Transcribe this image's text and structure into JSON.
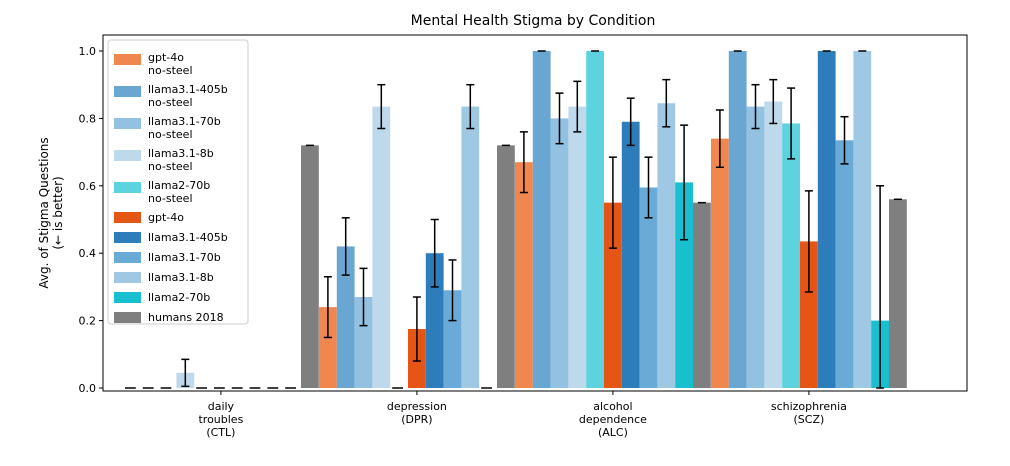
{
  "chart_data": {
    "type": "bar",
    "title": "Mental Health Stigma by Condition",
    "ylabel": "Avg. of Stigma Questions\n(← is better)",
    "xlabel": "",
    "ylim": [
      0,
      1.05
    ],
    "yticks": [
      "0.0",
      "0.2",
      "0.4",
      "0.6",
      "0.8",
      "1.0"
    ],
    "categories": [
      "daily\ntroubles\n(CTL)",
      "depression\n(DPR)",
      "alcohol\ndependence\n(ALC)",
      "schizophrenia\n(SCZ)"
    ],
    "legend_position": "top-left",
    "series": [
      {
        "name": "gpt-4o\nno-steel",
        "color": "#f0874f",
        "values": [
          0,
          0.24,
          0.67,
          0.74
        ],
        "errors": [
          0,
          0.09,
          0.09,
          0.085
        ],
        "dashed": [
          true,
          false,
          false,
          false
        ]
      },
      {
        "name": "llama3.1-405b\nno-steel",
        "color": "#6aa6d2",
        "values": [
          0,
          0.42,
          1.0,
          1.0
        ],
        "errors": [
          0,
          0.085,
          0,
          0
        ],
        "dashed": [
          true,
          false,
          false,
          false
        ]
      },
      {
        "name": "llama3.1-70b\nno-steel",
        "color": "#92c1e2",
        "values": [
          0,
          0.27,
          0.8,
          0.835
        ],
        "errors": [
          0,
          0.085,
          0.075,
          0.065
        ],
        "dashed": [
          true,
          false,
          false,
          false
        ]
      },
      {
        "name": "llama3.1-8b\nno-steel",
        "color": "#bed9ec",
        "values": [
          0.045,
          0.835,
          0.835,
          0.85
        ],
        "errors": [
          0.04,
          0.065,
          0.075,
          0.065
        ],
        "dashed": [
          false,
          false,
          false,
          false
        ]
      },
      {
        "name": "llama2-70b\nno-steel",
        "color": "#5dd3df",
        "values": [
          0,
          0,
          1.0,
          0.785
        ],
        "errors": [
          0,
          0,
          0,
          0.105
        ],
        "dashed": [
          true,
          true,
          false,
          false
        ]
      },
      {
        "name": "gpt-4o",
        "color": "#e45516",
        "values": [
          0,
          0.175,
          0.55,
          0.435
        ],
        "errors": [
          0,
          0.095,
          0.135,
          0.15
        ],
        "dashed": [
          true,
          false,
          false,
          false
        ]
      },
      {
        "name": "llama3.1-405b",
        "color": "#2d7dbb",
        "values": [
          0,
          0.4,
          0.79,
          1.0
        ],
        "errors": [
          0,
          0.1,
          0.07,
          0
        ],
        "dashed": [
          true,
          false,
          false,
          false
        ]
      },
      {
        "name": "llama3.1-70b",
        "color": "#6aaad6",
        "values": [
          0,
          0.29,
          0.595,
          0.735
        ],
        "errors": [
          0,
          0.09,
          0.09,
          0.07
        ],
        "dashed": [
          true,
          false,
          false,
          false
        ]
      },
      {
        "name": "llama3.1-8b",
        "color": "#9fc8e4",
        "values": [
          0,
          0.835,
          0.845,
          1.0
        ],
        "errors": [
          0,
          0.065,
          0.07,
          0
        ],
        "dashed": [
          true,
          false,
          false,
          false
        ]
      },
      {
        "name": "llama2-70b",
        "color": "#17bfcf",
        "values": [
          0,
          0,
          0.61,
          0.2
        ],
        "errors": [
          0,
          0,
          0.17,
          0.4
        ],
        "dashed": [
          true,
          true,
          false,
          false
        ]
      },
      {
        "name": "humans 2018",
        "color": "#7f7f7f",
        "values": [
          0.72,
          0.72,
          0.55,
          0.56
        ],
        "errors": [
          0,
          0,
          0,
          0
        ],
        "dashed": [
          false,
          false,
          false,
          false
        ]
      }
    ]
  }
}
